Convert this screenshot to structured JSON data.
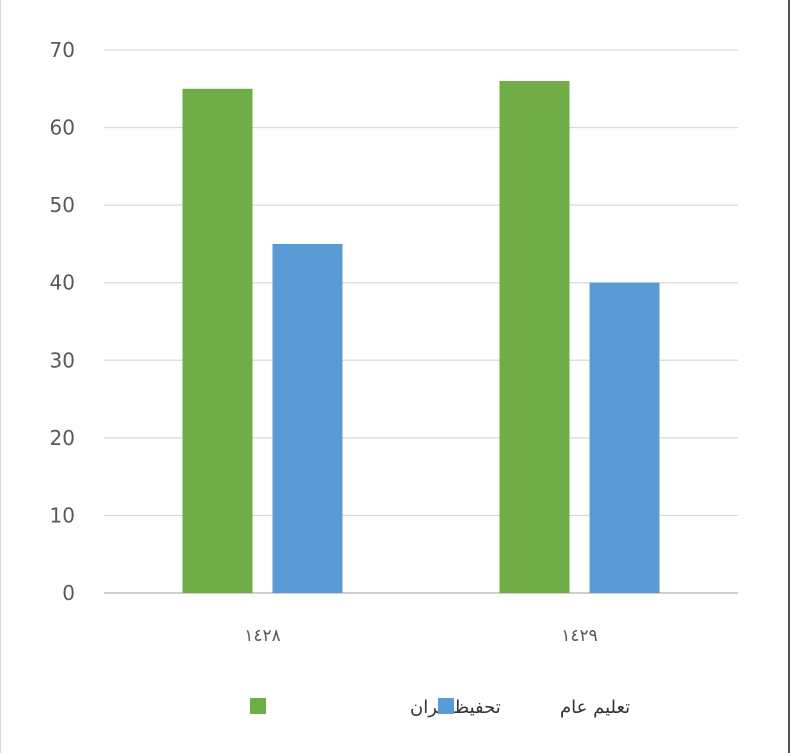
{
  "chart_data": {
    "type": "bar",
    "categories": [
      "١٤٢٨",
      "١٤٢٩"
    ],
    "series": [
      {
        "name": "تحفيظ قران",
        "values": [
          65,
          66
        ],
        "color": "#70ad47"
      },
      {
        "name": "تعليم عام",
        "values": [
          45,
          40
        ],
        "color": "#5b9bd5"
      }
    ],
    "yticks": [
      "0",
      "10",
      "20",
      "30",
      "40",
      "50",
      "60",
      "70"
    ],
    "ylim": [
      0,
      70
    ],
    "grid": true,
    "legend_position": "bottom"
  }
}
